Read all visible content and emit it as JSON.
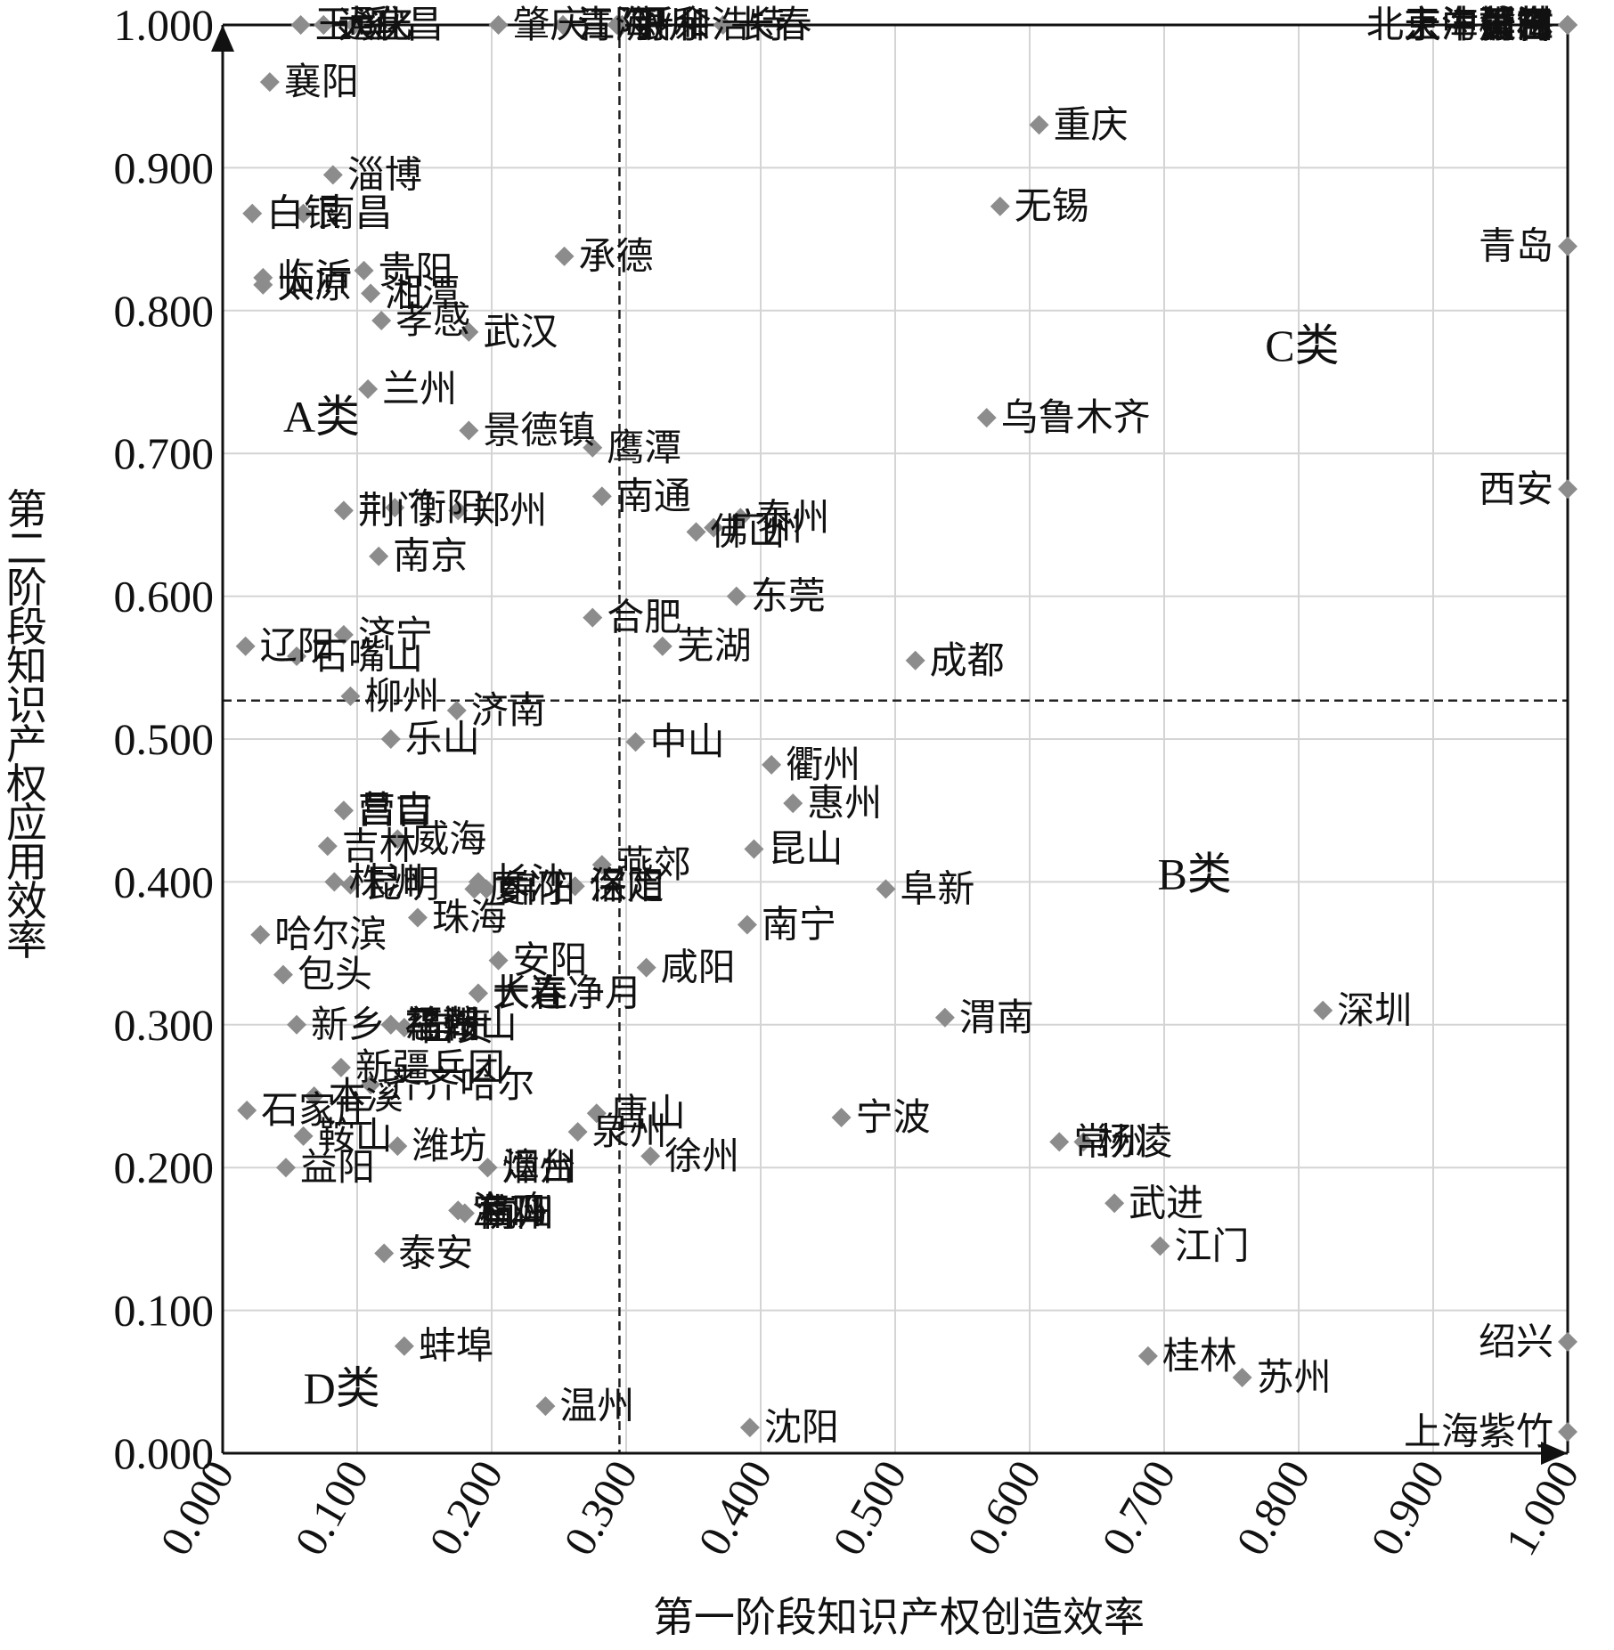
{
  "chart_data": {
    "type": "scatter",
    "title": "",
    "xlabel": "第一阶段知识产权创造效率",
    "ylabel": "第二阶段知识产权应用效率",
    "xlim": [
      0,
      1
    ],
    "ylim": [
      0,
      1
    ],
    "x_ticks": [
      "0.000",
      "0.100",
      "0.200",
      "0.300",
      "0.400",
      "0.500",
      "0.600",
      "0.700",
      "0.800",
      "0.900",
      "1.000"
    ],
    "y_ticks": [
      "0.000",
      "0.100",
      "0.200",
      "0.300",
      "0.400",
      "0.500",
      "0.600",
      "0.700",
      "0.800",
      "0.900",
      "1.000"
    ],
    "grid": true,
    "marker": "diamond",
    "marker_color": "#8c8c8c",
    "threshold_x": 0.295,
    "threshold_y": 0.527,
    "regions": [
      {
        "name": "A类",
        "x": 0.045,
        "y": 0.715
      },
      {
        "name": "C类",
        "x": 0.775,
        "y": 0.765
      },
      {
        "name": "B类",
        "x": 0.695,
        "y": 0.395
      },
      {
        "name": "D类",
        "x": 0.06,
        "y": 0.035
      }
    ],
    "points": [
      {
        "label": "北京中关村",
        "x": 1.0,
        "y": 1.0
      },
      {
        "label": "天津滨海",
        "x": 1.0,
        "y": 1.0
      },
      {
        "label": "上海张江",
        "x": 1.0,
        "y": 1.0
      },
      {
        "label": "莆田",
        "x": 1.0,
        "y": 1.0
      },
      {
        "label": "榆林",
        "x": 1.0,
        "y": 1.0
      },
      {
        "label": "延吉",
        "x": 1.0,
        "y": 1.0
      },
      {
        "label": "青岛",
        "x": 1.0,
        "y": 0.845
      },
      {
        "label": "西安",
        "x": 1.0,
        "y": 0.675
      },
      {
        "label": "绍兴",
        "x": 1.0,
        "y": 0.078
      },
      {
        "label": "上海紫竹",
        "x": 1.0,
        "y": 0.015
      },
      {
        "label": "玉溪",
        "x": 0.058,
        "y": 1.0
      },
      {
        "label": "通化",
        "x": 0.075,
        "y": 1.0
      },
      {
        "label": "宜昌",
        "x": 0.098,
        "y": 1.0
      },
      {
        "label": "大庆",
        "x": 0.075,
        "y": 1.0
      },
      {
        "label": "肇庆",
        "x": 0.205,
        "y": 1.0
      },
      {
        "label": "青海",
        "x": 0.253,
        "y": 1.0
      },
      {
        "label": "江阴",
        "x": 0.253,
        "y": 1.0
      },
      {
        "label": "银川",
        "x": 0.293,
        "y": 1.0
      },
      {
        "label": "呼和浩特",
        "x": 0.297,
        "y": 1.0
      },
      {
        "label": "新余",
        "x": 0.297,
        "y": 1.0
      },
      {
        "label": "长春",
        "x": 0.372,
        "y": 1.0
      },
      {
        "label": "襄阳",
        "x": 0.035,
        "y": 0.96
      },
      {
        "label": "重庆",
        "x": 0.607,
        "y": 0.93
      },
      {
        "label": "白银",
        "x": 0.022,
        "y": 0.868
      },
      {
        "label": "淄博",
        "x": 0.082,
        "y": 0.895
      },
      {
        "label": "南昌",
        "x": 0.06,
        "y": 0.868
      },
      {
        "label": "无锡",
        "x": 0.578,
        "y": 0.873
      },
      {
        "label": "贵阳",
        "x": 0.105,
        "y": 0.828
      },
      {
        "label": "湘潭",
        "x": 0.11,
        "y": 0.812
      },
      {
        "label": "承德",
        "x": 0.254,
        "y": 0.838
      },
      {
        "label": "临沂",
        "x": 0.03,
        "y": 0.823
      },
      {
        "label": "太原",
        "x": 0.03,
        "y": 0.818
      },
      {
        "label": "孝感",
        "x": 0.118,
        "y": 0.793
      },
      {
        "label": "武汉",
        "x": 0.183,
        "y": 0.785
      },
      {
        "label": "兰州",
        "x": 0.108,
        "y": 0.745
      },
      {
        "label": "景德镇",
        "x": 0.183,
        "y": 0.716
      },
      {
        "label": "乌鲁木齐",
        "x": 0.568,
        "y": 0.725
      },
      {
        "label": "鹰潭",
        "x": 0.275,
        "y": 0.704
      },
      {
        "label": "衡阳",
        "x": 0.128,
        "y": 0.662
      },
      {
        "label": "荆门",
        "x": 0.09,
        "y": 0.66
      },
      {
        "label": "郑州",
        "x": 0.175,
        "y": 0.66
      },
      {
        "label": "南通",
        "x": 0.282,
        "y": 0.67
      },
      {
        "label": "泰州",
        "x": 0.385,
        "y": 0.655
      },
      {
        "label": "广州",
        "x": 0.365,
        "y": 0.648
      },
      {
        "label": "佛山",
        "x": 0.352,
        "y": 0.645
      },
      {
        "label": "南京",
        "x": 0.116,
        "y": 0.628
      },
      {
        "label": "东莞",
        "x": 0.382,
        "y": 0.6
      },
      {
        "label": "合肥",
        "x": 0.275,
        "y": 0.585
      },
      {
        "label": "芜湖",
        "x": 0.327,
        "y": 0.565
      },
      {
        "label": "成都",
        "x": 0.515,
        "y": 0.555
      },
      {
        "label": "辽阳",
        "x": 0.017,
        "y": 0.565
      },
      {
        "label": "济宁",
        "x": 0.09,
        "y": 0.573
      },
      {
        "label": "石嘴山",
        "x": 0.055,
        "y": 0.558
      },
      {
        "label": "柳州",
        "x": 0.095,
        "y": 0.53
      },
      {
        "label": "济南",
        "x": 0.174,
        "y": 0.52
      },
      {
        "label": "乐山",
        "x": 0.125,
        "y": 0.5
      },
      {
        "label": "中山",
        "x": 0.307,
        "y": 0.498
      },
      {
        "label": "衢州",
        "x": 0.408,
        "y": 0.482
      },
      {
        "label": "营口",
        "x": 0.09,
        "y": 0.45
      },
      {
        "label": "昌吉",
        "x": 0.09,
        "y": 0.45
      },
      {
        "label": "长沙",
        "x": 0.19,
        "y": 0.4
      },
      {
        "label": "厦门",
        "x": 0.187,
        "y": 0.395
      },
      {
        "label": "惠州",
        "x": 0.424,
        "y": 0.455
      },
      {
        "label": "吉林",
        "x": 0.078,
        "y": 0.425
      },
      {
        "label": "威海",
        "x": 0.13,
        "y": 0.43
      },
      {
        "label": "绵阳",
        "x": 0.196,
        "y": 0.395
      },
      {
        "label": "燕郊",
        "x": 0.282,
        "y": 0.412
      },
      {
        "label": "昆山",
        "x": 0.395,
        "y": 0.423
      },
      {
        "label": "株洲",
        "x": 0.083,
        "y": 0.4
      },
      {
        "label": "昆明",
        "x": 0.095,
        "y": 0.398
      },
      {
        "label": "洛阳",
        "x": 0.262,
        "y": 0.397
      },
      {
        "label": "保定",
        "x": 0.262,
        "y": 0.397
      },
      {
        "label": "阜新",
        "x": 0.493,
        "y": 0.395
      },
      {
        "label": "哈尔滨",
        "x": 0.028,
        "y": 0.363
      },
      {
        "label": "珠海",
        "x": 0.145,
        "y": 0.375
      },
      {
        "label": "南宁",
        "x": 0.39,
        "y": 0.37
      },
      {
        "label": "安阳",
        "x": 0.205,
        "y": 0.345
      },
      {
        "label": "咸阳",
        "x": 0.315,
        "y": 0.34
      },
      {
        "label": "包头",
        "x": 0.045,
        "y": 0.335
      },
      {
        "label": "大连",
        "x": 0.19,
        "y": 0.322
      },
      {
        "label": "长春净月",
        "x": 0.19,
        "y": 0.322
      },
      {
        "label": "深圳",
        "x": 0.818,
        "y": 0.31
      },
      {
        "label": "渭南",
        "x": 0.537,
        "y": 0.305
      },
      {
        "label": "福州",
        "x": 0.125,
        "y": 0.3
      },
      {
        "label": "马鞍山",
        "x": 0.125,
        "y": 0.3
      },
      {
        "label": "慈湖",
        "x": 0.125,
        "y": 0.3
      },
      {
        "label": "自贡",
        "x": 0.135,
        "y": 0.298
      },
      {
        "label": "新乡",
        "x": 0.055,
        "y": 0.3
      },
      {
        "label": "齐齐哈尔",
        "x": 0.11,
        "y": 0.258
      },
      {
        "label": "唐山",
        "x": 0.278,
        "y": 0.238
      },
      {
        "label": "泉州",
        "x": 0.264,
        "y": 0.225
      },
      {
        "label": "宁波",
        "x": 0.46,
        "y": 0.235
      },
      {
        "label": "常州",
        "x": 0.622,
        "y": 0.218
      },
      {
        "label": "杨凌",
        "x": 0.64,
        "y": 0.218
      },
      {
        "label": "鞍山",
        "x": 0.06,
        "y": 0.222
      },
      {
        "label": "潍坊",
        "x": 0.13,
        "y": 0.215
      },
      {
        "label": "烟台",
        "x": 0.197,
        "y": 0.2
      },
      {
        "label": "徐州",
        "x": 0.318,
        "y": 0.208
      },
      {
        "label": "益阳",
        "x": 0.047,
        "y": 0.2
      },
      {
        "label": "石家庄",
        "x": 0.018,
        "y": 0.24
      },
      {
        "label": "漳州",
        "x": 0.197,
        "y": 0.2
      },
      {
        "label": "杭州",
        "x": 0.18,
        "y": 0.168
      },
      {
        "label": "南阳",
        "x": 0.18,
        "y": 0.168
      },
      {
        "label": "武进",
        "x": 0.663,
        "y": 0.175
      },
      {
        "label": "江门",
        "x": 0.697,
        "y": 0.145
      },
      {
        "label": "本溪",
        "x": 0.068,
        "y": 0.25
      },
      {
        "label": "泰安",
        "x": 0.12,
        "y": 0.14
      },
      {
        "label": "海口",
        "x": 0.175,
        "y": 0.17
      },
      {
        "label": "新疆兵团",
        "x": 0.088,
        "y": 0.27
      },
      {
        "label": "宝鸡",
        "x": 0.175,
        "y": 0.17
      },
      {
        "label": "蚌埠",
        "x": 0.135,
        "y": 0.075
      },
      {
        "label": "桂林",
        "x": 0.688,
        "y": 0.068
      },
      {
        "label": "苏州",
        "x": 0.758,
        "y": 0.053
      },
      {
        "label": "温州",
        "x": 0.24,
        "y": 0.033
      },
      {
        "label": "沈阳",
        "x": 0.392,
        "y": 0.018
      }
    ]
  }
}
